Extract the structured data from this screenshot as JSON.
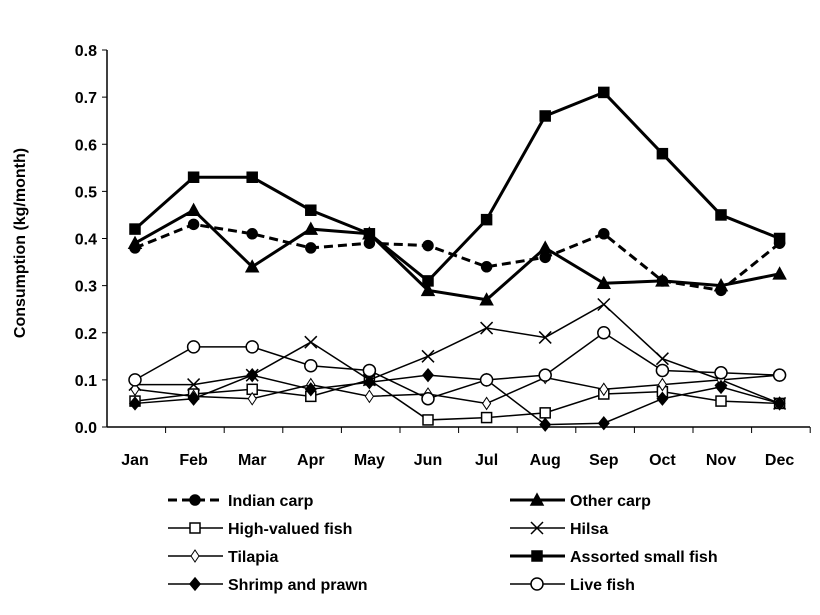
{
  "chart_data": {
    "type": "line",
    "title": "",
    "xlabel": "",
    "ylabel": "Consumption (kg/month)",
    "ylim": [
      0,
      0.8
    ],
    "yticks": [
      "0.0",
      "0.1",
      "0.2",
      "0.3",
      "0.4",
      "0.5",
      "0.6",
      "0.7",
      "0.8"
    ],
    "categories": [
      "Jan",
      "Feb",
      "Mar",
      "Apr",
      "May",
      "Jun",
      "Jul",
      "Aug",
      "Sep",
      "Oct",
      "Nov",
      "Dec"
    ],
    "grid": false,
    "legend_position": "bottom",
    "series": [
      {
        "name": "Indian carp",
        "marker": "filled-circle",
        "dash": true,
        "width": 3,
        "values": [
          0.38,
          0.43,
          0.41,
          0.38,
          0.39,
          0.385,
          0.34,
          0.36,
          0.41,
          0.31,
          0.29,
          0.39
        ]
      },
      {
        "name": "Other carp",
        "marker": "filled-triangle",
        "dash": false,
        "width": 3,
        "values": [
          0.39,
          0.46,
          0.34,
          0.42,
          0.41,
          0.29,
          0.27,
          0.38,
          0.305,
          0.31,
          0.3,
          0.325
        ]
      },
      {
        "name": "High-valued fish",
        "marker": "open-square",
        "dash": false,
        "width": 1.5,
        "values": [
          0.055,
          0.07,
          0.08,
          0.065,
          0.1,
          0.015,
          0.02,
          0.03,
          0.07,
          0.075,
          0.055,
          0.05
        ]
      },
      {
        "name": "Hilsa",
        "marker": "x",
        "dash": false,
        "width": 1.5,
        "values": [
          0.09,
          0.09,
          0.11,
          0.18,
          0.1,
          0.15,
          0.21,
          0.19,
          0.26,
          0.145,
          0.1,
          0.05
        ]
      },
      {
        "name": "Tilapia",
        "marker": "open-diamond",
        "dash": false,
        "width": 1.5,
        "values": [
          0.08,
          0.065,
          0.06,
          0.09,
          0.065,
          0.07,
          0.05,
          0.105,
          0.08,
          0.09,
          0.1,
          0.11
        ]
      },
      {
        "name": "Assorted small fish",
        "marker": "filled-square",
        "dash": false,
        "width": 3,
        "values": [
          0.42,
          0.53,
          0.53,
          0.46,
          0.41,
          0.31,
          0.44,
          0.66,
          0.71,
          0.58,
          0.45,
          0.4
        ]
      },
      {
        "name": "Shrimp and prawn",
        "marker": "filled-diamond",
        "dash": false,
        "width": 1.5,
        "values": [
          0.05,
          0.06,
          0.11,
          0.08,
          0.095,
          0.11,
          0.1,
          0.005,
          0.008,
          0.06,
          0.085,
          0.05
        ]
      },
      {
        "name": "Live fish",
        "marker": "open-circle",
        "dash": false,
        "width": 1.5,
        "values": [
          0.1,
          0.17,
          0.17,
          0.13,
          0.12,
          0.06,
          0.1,
          0.11,
          0.2,
          0.12,
          0.115,
          0.11
        ]
      }
    ]
  }
}
